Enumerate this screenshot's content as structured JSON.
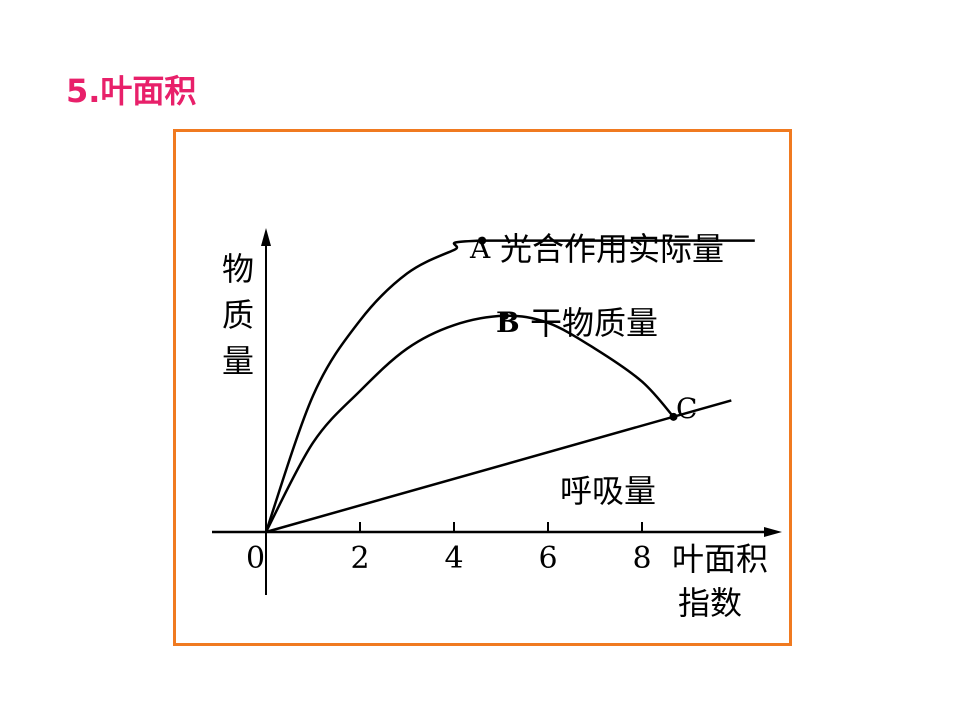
{
  "slide": {
    "title": "5.叶面积",
    "frame_color": "#f07a20",
    "title_color": "#e8206a"
  },
  "chart_data": {
    "type": "line",
    "title": "",
    "xlabel_line1": "叶面积",
    "xlabel_line2": "指数",
    "ylabel": "物质量",
    "origin_label": "0",
    "xticks": [
      "2",
      "4",
      "6",
      "8"
    ],
    "xtick_values": [
      2,
      4,
      6,
      8
    ],
    "xlim": [
      0,
      10.5
    ],
    "grid": false,
    "series": [
      {
        "name": "光合作用实际量",
        "point_label": "A",
        "point": [
          4.6,
          6.2
        ],
        "x": [
          0,
          1,
          2,
          3,
          4,
          4.6,
          10.4
        ],
        "y": [
          0,
          2.9,
          4.5,
          5.5,
          6.0,
          6.2,
          6.2
        ]
      },
      {
        "name": "干物质量",
        "point_label": "B",
        "point": [
          5.08,
          4.6
        ],
        "x": [
          0,
          1,
          2,
          3,
          4,
          5.08,
          6,
          7,
          8,
          8.67
        ],
        "y": [
          0,
          1.9,
          3.0,
          3.9,
          4.4,
          4.6,
          4.45,
          3.9,
          3.2,
          2.45
        ]
      },
      {
        "name": "呼吸量",
        "point_label": "C",
        "point": [
          8.67,
          2.45
        ],
        "x": [
          0,
          9.9
        ],
        "y": [
          0,
          2.8
        ]
      }
    ]
  }
}
